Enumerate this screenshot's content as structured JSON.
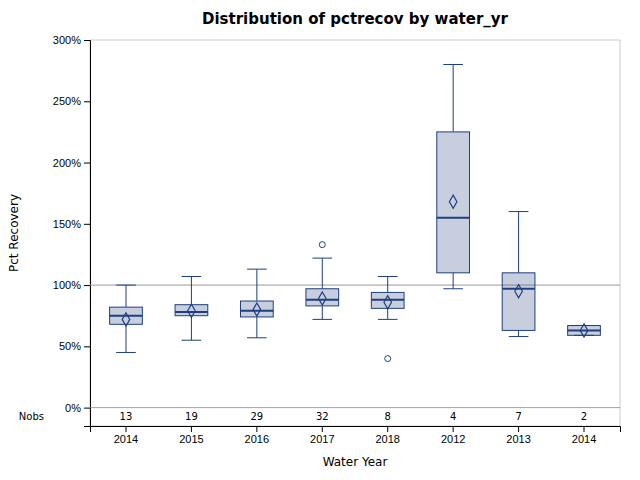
{
  "chart_data": {
    "type": "box",
    "title": "Distribution of pctrecov by water_yr",
    "xlabel": "Water Year",
    "ylabel": "Pct Recovery",
    "color": "#1f3f7f",
    "categories": [
      "2014",
      "2015",
      "2016",
      "2017",
      "2018",
      "2012",
      "2013",
      "2014"
    ],
    "boxes": [
      {
        "q1": 68,
        "median": 75,
        "q3": 82,
        "whisker_low": 45,
        "whisker_high": 100,
        "mean": 72,
        "outliers": []
      },
      {
        "q1": 75,
        "median": 78,
        "q3": 84,
        "whisker_low": 55,
        "whisker_high": 107,
        "mean": 79,
        "outliers": []
      },
      {
        "q1": 74,
        "median": 79,
        "q3": 87,
        "whisker_low": 57,
        "whisker_high": 113,
        "mean": 80,
        "outliers": []
      },
      {
        "q1": 83,
        "median": 88,
        "q3": 97,
        "whisker_low": 72,
        "whisker_high": 122,
        "mean": 89,
        "outliers": [
          133
        ]
      },
      {
        "q1": 81,
        "median": 88,
        "q3": 94,
        "whisker_low": 72,
        "whisker_high": 107,
        "mean": 86,
        "outliers": [
          40
        ]
      },
      {
        "q1": 110,
        "median": 155,
        "q3": 225,
        "whisker_low": 97,
        "whisker_high": 280,
        "mean": 168,
        "outliers": []
      },
      {
        "q1": 63,
        "median": 97,
        "q3": 110,
        "whisker_low": 58,
        "whisker_high": 160,
        "mean": 95,
        "outliers": []
      },
      {
        "q1": 59,
        "median": 63,
        "q3": 67,
        "whisker_low": 59,
        "whisker_high": 67,
        "mean": 63,
        "outliers": []
      }
    ],
    "nobs_label": "Nobs",
    "nobs": [
      13,
      19,
      29,
      32,
      8,
      4,
      7,
      2
    ],
    "reference_line": 100,
    "ylim": [
      -15,
      300
    ],
    "yticks": [
      {
        "value": 0,
        "label": "0%"
      },
      {
        "value": 50,
        "label": "50%"
      },
      {
        "value": 100,
        "label": "100%"
      },
      {
        "value": 150,
        "label": "150%"
      },
      {
        "value": 200,
        "label": "200%"
      },
      {
        "value": 250,
        "label": "250%"
      },
      {
        "value": 300,
        "label": "300%"
      }
    ],
    "grid": false
  }
}
